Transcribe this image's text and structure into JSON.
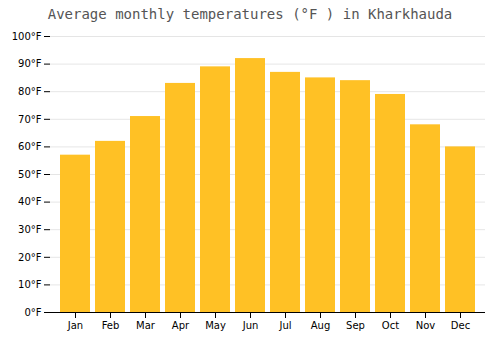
{
  "chart_data": {
    "type": "bar",
    "title": "Average monthly temperatures (°F ) in Kharkhauda",
    "categories": [
      "Jan",
      "Feb",
      "Mar",
      "Apr",
      "May",
      "Jun",
      "Jul",
      "Aug",
      "Sep",
      "Oct",
      "Nov",
      "Dec"
    ],
    "values": [
      57,
      62,
      71,
      83,
      89,
      92,
      87,
      85,
      84,
      79,
      68,
      60
    ],
    "color": "#FFC125",
    "ylim": [
      0,
      100
    ],
    "yticks": [
      {
        "value": 0,
        "label": "0°F"
      },
      {
        "value": 10,
        "label": "10°F"
      },
      {
        "value": 20,
        "label": "20°F"
      },
      {
        "value": 30,
        "label": "30°F"
      },
      {
        "value": 40,
        "label": "40°F"
      },
      {
        "value": 50,
        "label": "50°F"
      },
      {
        "value": 60,
        "label": "60°F"
      },
      {
        "value": 70,
        "label": "70°F"
      },
      {
        "value": 80,
        "label": "80°F"
      },
      {
        "value": 90,
        "label": "90°F"
      },
      {
        "value": 100,
        "label": "100°F"
      }
    ],
    "grid": true
  }
}
